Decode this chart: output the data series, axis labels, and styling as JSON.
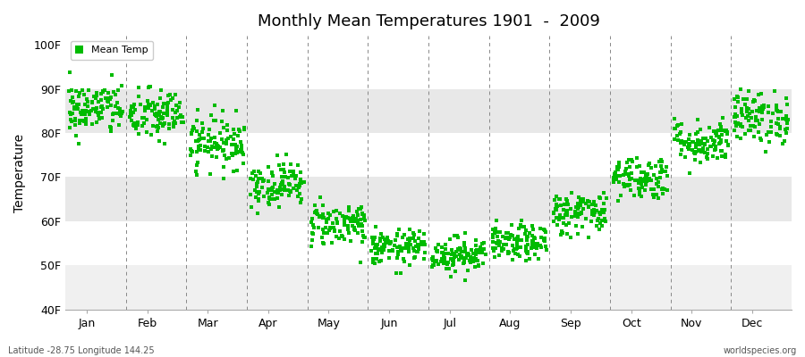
{
  "title": "Monthly Mean Temperatures 1901  -  2009",
  "ylabel": "Temperature",
  "subtitle_left": "Latitude -28.75 Longitude 144.25",
  "subtitle_right": "worldspecies.org",
  "months": [
    "Jan",
    "Feb",
    "Mar",
    "Apr",
    "May",
    "Jun",
    "Jul",
    "Aug",
    "Sep",
    "Oct",
    "Nov",
    "Dec"
  ],
  "yticks": [
    40,
    50,
    60,
    70,
    80,
    90,
    100
  ],
  "ytick_labels": [
    "40F",
    "50F",
    "60F",
    "70F",
    "80F",
    "90F",
    "100F"
  ],
  "ylim": [
    40,
    102
  ],
  "num_years": 109,
  "mean_temps_f": [
    85.5,
    84.0,
    78.0,
    68.5,
    59.5,
    54.0,
    52.5,
    55.0,
    62.0,
    70.0,
    78.0,
    83.5
  ],
  "std_temps_f": [
    3.0,
    3.0,
    3.0,
    2.5,
    2.5,
    2.0,
    2.0,
    2.0,
    2.5,
    2.5,
    2.5,
    3.0
  ],
  "marker_color": "#00bb00",
  "marker_size": 5,
  "bg_color": "#ffffff",
  "band_colors": [
    "#eeeeee",
    "#ffffff",
    "#eeeeee",
    "#ffffff",
    "#eeeeee",
    "#f5f5f5"
  ],
  "grid_line_color": "#888888",
  "legend_label": "Mean Temp"
}
